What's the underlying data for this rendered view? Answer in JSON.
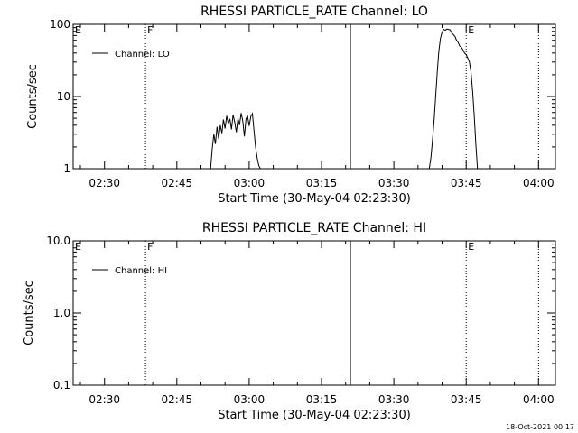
{
  "chart_data": [
    {
      "type": "line",
      "title": "RHESSI PARTICLE_RATE Channel: LO",
      "xlabel": "Start Time (30-May-04 02:23:30)",
      "ylabel": "Counts/sec",
      "yscale": "log",
      "xlim": [
        "02:23:30",
        "04:03:30"
      ],
      "ylim": [
        1,
        100
      ],
      "x_ticks": [
        "02:30",
        "02:45",
        "03:00",
        "03:15",
        "03:30",
        "03:45",
        "04:00"
      ],
      "y_ticks": [
        {
          "value": 1,
          "label": "1"
        },
        {
          "value": 10,
          "label": "10"
        },
        {
          "value": 100,
          "label": "100"
        }
      ],
      "grid": false,
      "legend": {
        "position": "top-left",
        "entries": [
          "Channel: LO"
        ]
      },
      "series": [
        {
          "name": "Channel: LO",
          "x": [
            "02:52:00",
            "02:52:20",
            "02:52:40",
            "02:53:00",
            "02:53:20",
            "02:53:40",
            "02:54:00",
            "02:54:20",
            "02:54:40",
            "02:55:00",
            "02:55:20",
            "02:55:40",
            "02:56:00",
            "02:56:20",
            "02:56:40",
            "02:57:00",
            "02:57:20",
            "02:57:40",
            "02:58:00",
            "02:58:20",
            "02:58:40",
            "02:59:00",
            "02:59:20",
            "02:59:40",
            "03:00:00",
            "03:00:20",
            "03:00:40",
            "03:01:00",
            "03:01:20",
            "03:01:40",
            "03:02:00",
            "03:02:20",
            "03:37:20",
            "03:37:40",
            "03:38:00",
            "03:38:20",
            "03:38:40",
            "03:39:00",
            "03:39:20",
            "03:39:40",
            "03:40:00",
            "03:40:20",
            "03:40:40",
            "03:41:00",
            "03:41:40",
            "03:42:00",
            "03:42:40",
            "03:43:00",
            "03:43:20",
            "03:43:40",
            "03:44:00",
            "03:44:20",
            "03:44:40",
            "03:45:00",
            "03:45:20",
            "03:45:40",
            "03:46:00",
            "03:46:20",
            "03:46:40",
            "03:47:00",
            "03:47:20"
          ],
          "y": [
            1.0,
            1.9,
            3.0,
            2.2,
            3.8,
            2.6,
            4.0,
            3.1,
            4.8,
            3.6,
            5.4,
            4.2,
            4.9,
            3.5,
            5.6,
            4.4,
            3.2,
            5.0,
            4.0,
            5.9,
            4.6,
            2.8,
            4.9,
            5.4,
            3.9,
            5.3,
            5.8,
            3.3,
            2.0,
            1.4,
            1.1,
            1.0,
            1.0,
            1.4,
            2.4,
            4.5,
            10.0,
            22.0,
            42.0,
            64.0,
            78.0,
            85.0,
            83.0,
            86.0,
            84.0,
            76.0,
            68.0,
            60.0,
            56.0,
            50.0,
            48.0,
            44.0,
            40.0,
            38.0,
            34.0,
            30.0,
            22.0,
            12.0,
            5.5,
            2.2,
            1.0
          ]
        }
      ],
      "annotations": [
        {
          "text": "E",
          "x": "02:23:30",
          "style": "dotted"
        },
        {
          "text": "F",
          "x": "02:38:30",
          "style": "dotted"
        },
        {
          "text": "",
          "x": "03:21:00",
          "style": "solid"
        },
        {
          "text": "E",
          "x": "03:45:00",
          "style": "dotted"
        },
        {
          "text": "",
          "x": "04:00:00",
          "style": "dotted"
        }
      ]
    },
    {
      "type": "line",
      "title": "RHESSI PARTICLE_RATE Channel: HI",
      "xlabel": "Start Time (30-May-04 02:23:30)",
      "ylabel": "Counts/sec",
      "yscale": "log",
      "xlim": [
        "02:23:30",
        "04:03:30"
      ],
      "ylim": [
        0.1,
        10
      ],
      "x_ticks": [
        "02:30",
        "02:45",
        "03:00",
        "03:15",
        "03:30",
        "03:45",
        "04:00"
      ],
      "y_ticks": [
        {
          "value": 0.1,
          "label": "0.1"
        },
        {
          "value": 1,
          "label": "1.0"
        },
        {
          "value": 10,
          "label": "10.0"
        }
      ],
      "grid": false,
      "legend": {
        "position": "top-left",
        "entries": [
          "Channel: HI"
        ]
      },
      "series": [
        {
          "name": "Channel: HI",
          "x": [],
          "y": []
        }
      ],
      "annotations": [
        {
          "text": "E",
          "x": "02:23:30",
          "style": "dotted"
        },
        {
          "text": "F",
          "x": "02:38:30",
          "style": "dotted"
        },
        {
          "text": "",
          "x": "03:21:00",
          "style": "solid"
        },
        {
          "text": "E",
          "x": "03:45:00",
          "style": "dotted"
        },
        {
          "text": "",
          "x": "04:00:00",
          "style": "dotted"
        }
      ]
    }
  ],
  "footer": {
    "timestamp": "18-Oct-2021 00:17"
  }
}
